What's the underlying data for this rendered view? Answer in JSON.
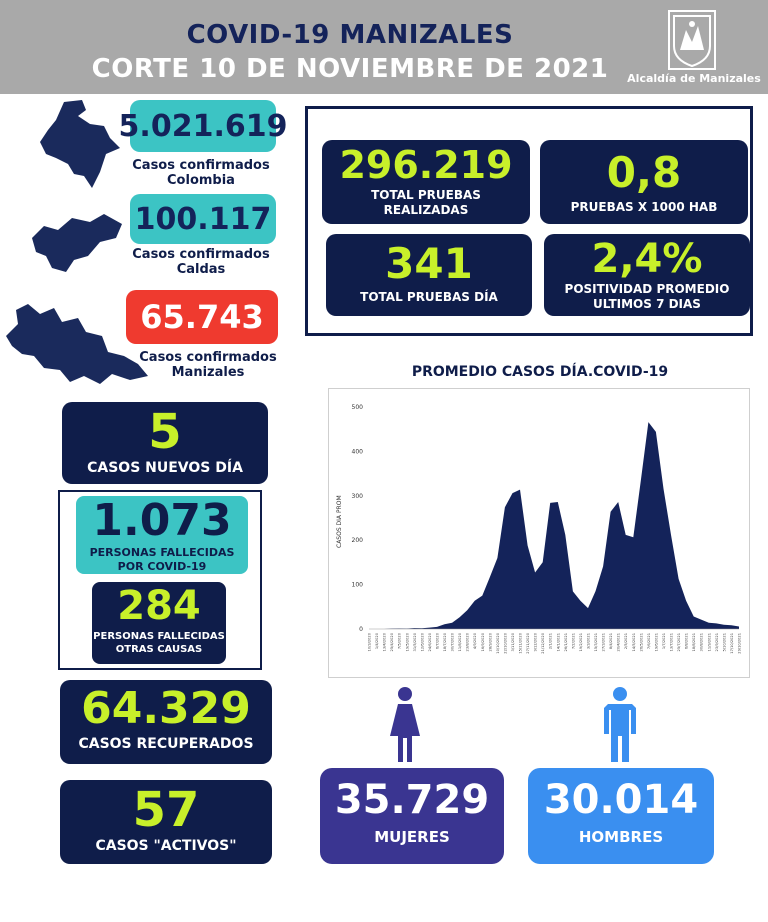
{
  "header": {
    "title": "COVID-19 MANIZALES",
    "subtitle": "CORTE 10 DE NOVIEMBRE DE 2021",
    "logo_text": "Alcaldía de Manizales"
  },
  "colombia": {
    "value": "5.021.619",
    "label_line1": "Casos confirmados",
    "label_line2": "Colombia"
  },
  "caldas": {
    "value": "100.117",
    "label_line1": "Casos confirmados",
    "label_line2": "Caldas"
  },
  "manizales": {
    "value": "65.743",
    "label_line1": "Casos confirmados",
    "label_line2": "Manizales"
  },
  "new_cases": {
    "value": "5",
    "label": "CASOS NUEVOS DÍA"
  },
  "deaths_covid": {
    "value": "1.073",
    "label_line1": "PERSONAS FALLECIDAS",
    "label_line2": "POR COVID-19"
  },
  "deaths_other": {
    "value": "284",
    "label_line1": "PERSONAS FALLECIDAS",
    "label_line2": "OTRAS CAUSAS"
  },
  "recovered": {
    "value": "64.329",
    "label": "CASOS RECUPERADOS"
  },
  "active": {
    "value": "57",
    "label": "CASOS \"ACTIVOS\""
  },
  "tests": {
    "total": {
      "value": "296.219",
      "label_line1": "TOTAL PRUEBAS",
      "label_line2": "REALIZADAS"
    },
    "per_1000": {
      "value": "0,8",
      "label": "PRUEBAS X 1000 HAB"
    },
    "daily": {
      "value": "341",
      "label": "TOTAL PRUEBAS DÍA"
    },
    "positivity": {
      "value": "2,4%",
      "label_line1": "POSITIVIDAD PROMEDIO",
      "label_line2": "ULTIMOS 7 DIAS"
    }
  },
  "women": {
    "value": "35.729",
    "label": "MUJERES"
  },
  "men": {
    "value": "30.014",
    "label": "HOMBRES"
  },
  "colors": {
    "navy": "#0f1d4a",
    "lime": "#c8f02a",
    "teal": "#3cc4c4",
    "red": "#ef3a2f",
    "purple": "#3a3591",
    "blue": "#3a8ff0"
  },
  "chart_data": {
    "type": "area",
    "title": "PROMEDIO CASOS DÍA.COVID-19",
    "ylabel": "CASOS DIA PROM",
    "ylim": [
      0,
      500
    ],
    "yticks": [
      0,
      100,
      200,
      300,
      400,
      500
    ],
    "x": [
      "10/3/2020",
      "1/4/2020",
      "13/4/2020",
      "25/4/2020",
      "7/5/2020",
      "19/5/2020",
      "31/5/2020",
      "12/6/2020",
      "24/6/2020",
      "6/7/2020",
      "18/7/2020",
      "30/7/2020",
      "11/8/2020",
      "23/8/2020",
      "4/9/2020",
      "16/9/2020",
      "28/9/2020",
      "10/10/2020",
      "22/10/2020",
      "3/11/2020",
      "15/11/2020",
      "27/11/2020",
      "9/12/2020",
      "21/12/2020",
      "2/1/2021",
      "14/1/2021",
      "26/1/2021",
      "7/2/2021",
      "19/2/2021",
      "3/3/2021",
      "15/3/2021",
      "27/3/2021",
      "8/4/2021",
      "20/4/2021",
      "2/5/2021",
      "14/5/2021",
      "26/5/2021",
      "7/6/2021",
      "19/6/2021",
      "1/7/2021",
      "13/7/2021",
      "25/7/2021",
      "6/8/2021",
      "18/8/2021",
      "30/8/2021",
      "11/9/2021",
      "23/9/2021",
      "5/10/2021",
      "17/10/2021",
      "29/10/2021"
    ],
    "values": [
      0,
      0,
      0,
      1,
      1,
      1,
      2,
      2,
      3,
      5,
      10,
      15,
      25,
      45,
      60,
      80,
      110,
      170,
      260,
      320,
      300,
      200,
      120,
      160,
      270,
      300,
      200,
      90,
      60,
      50,
      80,
      150,
      250,
      300,
      200,
      220,
      320,
      480,
      430,
      330,
      200,
      120,
      60,
      30,
      20,
      15,
      12,
      10,
      8,
      6
    ]
  }
}
